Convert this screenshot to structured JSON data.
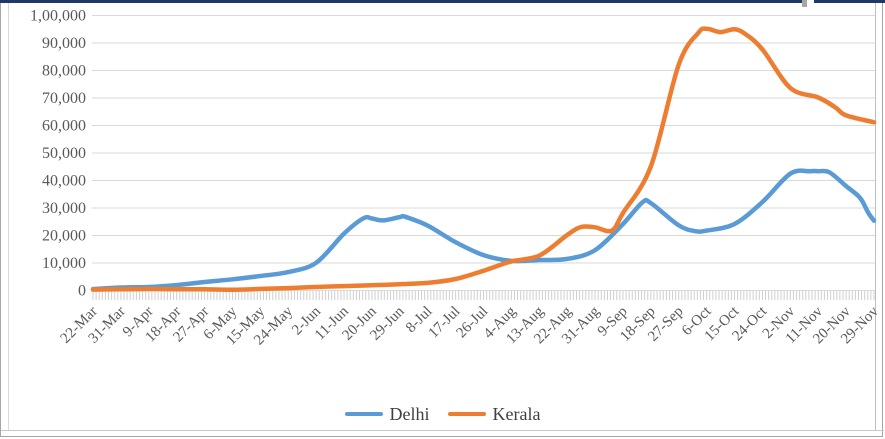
{
  "chart_data": {
    "type": "line",
    "title": "",
    "xlabel": "",
    "ylabel": "",
    "categories": [
      "22-Mar",
      "31-Mar",
      "9-Apr",
      "18-Apr",
      "27-Apr",
      "6-May",
      "15-May",
      "24-May",
      "2-Jun",
      "11-Jun",
      "20-Jun",
      "29-Jun",
      "8-Jul",
      "17-Jul",
      "26-Jul",
      "4-Aug",
      "13-Aug",
      "22-Aug",
      "31-Aug",
      "9-Sep",
      "18-Sep",
      "27-Sep",
      "6-Oct",
      "15-Oct",
      "24-Oct",
      "2-Nov",
      "11-Nov",
      "20-Nov",
      "29-Nov"
    ],
    "y_axis": {
      "min": 0,
      "max": 100000,
      "step": 10000,
      "tick_labels": [
        "1,00,000",
        "90,000",
        "80,000",
        "70,000",
        "60,000",
        "50,000",
        "40,000",
        "30,000",
        "20,000",
        "10,000",
        "0"
      ]
    },
    "grid": true,
    "legend_position": "bottom",
    "series": [
      {
        "name": "Delhi",
        "color": "#5B9BD5",
        "values": [
          350,
          900,
          1100,
          1800,
          2900,
          3900,
          5100,
          6500,
          9900,
          20500,
          26000,
          26600,
          23400,
          17400,
          12700,
          10600,
          10900,
          11300,
          14500,
          24000,
          31600,
          23500,
          21600,
          24000,
          32000,
          42300,
          43200,
          37800,
          25200
        ],
        "render_anchors": [
          [
            0,
            350
          ],
          [
            1,
            900
          ],
          [
            2,
            1100
          ],
          [
            3,
            1800
          ],
          [
            4,
            2900
          ],
          [
            5,
            3900
          ],
          [
            6,
            5100
          ],
          [
            7,
            6500
          ],
          [
            8,
            9900
          ],
          [
            9,
            20500
          ],
          [
            9.7,
            26100
          ],
          [
            10,
            26000
          ],
          [
            10.4,
            25300
          ],
          [
            11,
            26500
          ],
          [
            11.2,
            26600
          ],
          [
            12,
            23400
          ],
          [
            13,
            17400
          ],
          [
            14,
            12700
          ],
          [
            15,
            10600
          ],
          [
            16,
            10900
          ],
          [
            17,
            11300
          ],
          [
            18,
            14500
          ],
          [
            19,
            24000
          ],
          [
            19.7,
            31900
          ],
          [
            20,
            31600
          ],
          [
            21,
            23500
          ],
          [
            21.6,
            21400
          ],
          [
            22,
            21600
          ],
          [
            23,
            24000
          ],
          [
            24,
            32000
          ],
          [
            25,
            42300
          ],
          [
            25.7,
            43200
          ],
          [
            26,
            43200
          ],
          [
            26.4,
            42800
          ],
          [
            27,
            37800
          ],
          [
            27.5,
            33500
          ],
          [
            27.8,
            28000
          ],
          [
            28,
            25200
          ]
        ]
      },
      {
        "name": "Kerala",
        "color": "#ED7D31",
        "values": [
          150,
          250,
          350,
          300,
          250,
          100,
          400,
          700,
          1100,
          1400,
          1700,
          2100,
          2600,
          4000,
          7000,
          10400,
          12500,
          20000,
          22800,
          28000,
          45000,
          82000,
          95000,
          94800,
          87500,
          73500,
          70000,
          63500,
          61000
        ],
        "render_anchors": [
          [
            0,
            150
          ],
          [
            1,
            250
          ],
          [
            2,
            350
          ],
          [
            3,
            300
          ],
          [
            4,
            250
          ],
          [
            5,
            100
          ],
          [
            6,
            400
          ],
          [
            7,
            700
          ],
          [
            8,
            1100
          ],
          [
            9,
            1400
          ],
          [
            10,
            1700
          ],
          [
            11,
            2100
          ],
          [
            12,
            2600
          ],
          [
            13,
            4000
          ],
          [
            14,
            7000
          ],
          [
            15,
            10400
          ],
          [
            16,
            12500
          ],
          [
            17,
            20000
          ],
          [
            17.5,
            22900
          ],
          [
            18,
            22800
          ],
          [
            18.6,
            21600
          ],
          [
            19,
            28000
          ],
          [
            20,
            45000
          ],
          [
            21,
            82000
          ],
          [
            21.7,
            93500
          ],
          [
            22,
            95000
          ],
          [
            22.5,
            93800
          ],
          [
            23,
            94800
          ],
          [
            23.4,
            93000
          ],
          [
            24,
            87500
          ],
          [
            25,
            73500
          ],
          [
            26,
            70000
          ],
          [
            26.6,
            66500
          ],
          [
            27,
            63500
          ],
          [
            28,
            61000
          ]
        ]
      }
    ]
  },
  "legend": {
    "delhi_label": "Delhi",
    "kerala_label": "Kerala"
  },
  "colors": {
    "delhi": "#5B9BD5",
    "kerala": "#ED7D31",
    "gridline": "#D9D9D9",
    "axis_text": "#595959",
    "tick": "#CFCFCF",
    "top_border": "#203864",
    "frame": "#BFBFBF"
  }
}
